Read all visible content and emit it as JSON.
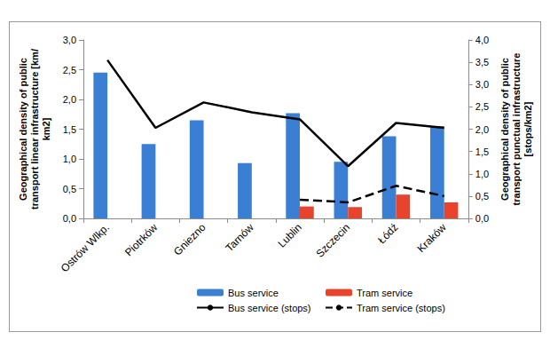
{
  "chart_data": {
    "type": "bar",
    "categories": [
      "Ostrów Wlkp.",
      "Piotrków",
      "Gniezno",
      "Tarnów",
      "Lublin",
      "Szczecin",
      "Łódź",
      "Kraków"
    ],
    "series": [
      {
        "name": "Bus service",
        "type": "bar",
        "color": "#3a7fd3",
        "values": [
          2.45,
          1.25,
          1.65,
          0.93,
          1.77,
          0.95,
          1.38,
          1.55
        ]
      },
      {
        "name": "Tram service",
        "type": "bar",
        "color": "#e8432d",
        "values": [
          null,
          null,
          null,
          null,
          0.2,
          0.19,
          0.4,
          0.27
        ]
      },
      {
        "name": "Bus service (stops)",
        "type": "line",
        "axis": "y2",
        "color": "#000000",
        "line_style": "solid",
        "values": [
          3.55,
          2.03,
          2.6,
          2.38,
          2.22,
          1.17,
          2.14,
          2.03
        ]
      },
      {
        "name": "Tram service (stops)",
        "type": "line",
        "axis": "y2",
        "color": "#000000",
        "line_style": "dashed",
        "values": [
          null,
          null,
          null,
          null,
          0.42,
          0.36,
          0.73,
          0.5
        ]
      }
    ],
    "ylabel": "Geographical density of public\ntransport linear infrastructure [km/\nkm2]",
    "y2label": "Geographical density of public\ntransport punctual infrastructure\n[stops/km2]",
    "ylim": [
      0,
      3
    ],
    "yticks": [
      {
        "value": 0,
        "label": "0,0"
      },
      {
        "value": 0.5,
        "label": "0,5"
      },
      {
        "value": 1,
        "label": "1,0"
      },
      {
        "value": 1.5,
        "label": "1,5"
      },
      {
        "value": 2,
        "label": "2,0"
      },
      {
        "value": 2.5,
        "label": "2,5"
      },
      {
        "value": 3,
        "label": "3,0"
      }
    ],
    "y2lim": [
      0,
      4
    ],
    "y2ticks": [
      {
        "value": 0,
        "label": "0,0"
      },
      {
        "value": 0.5,
        "label": "0,5"
      },
      {
        "value": 1,
        "label": "1,0"
      },
      {
        "value": 1.5,
        "label": "1,5"
      },
      {
        "value": 2,
        "label": "2,0"
      },
      {
        "value": 2.5,
        "label": "2,5"
      },
      {
        "value": 3,
        "label": "3,0"
      },
      {
        "value": 3.5,
        "label": "3,5"
      },
      {
        "value": 4,
        "label": "4,0"
      }
    ],
    "grid": false,
    "legend": "bottom"
  }
}
